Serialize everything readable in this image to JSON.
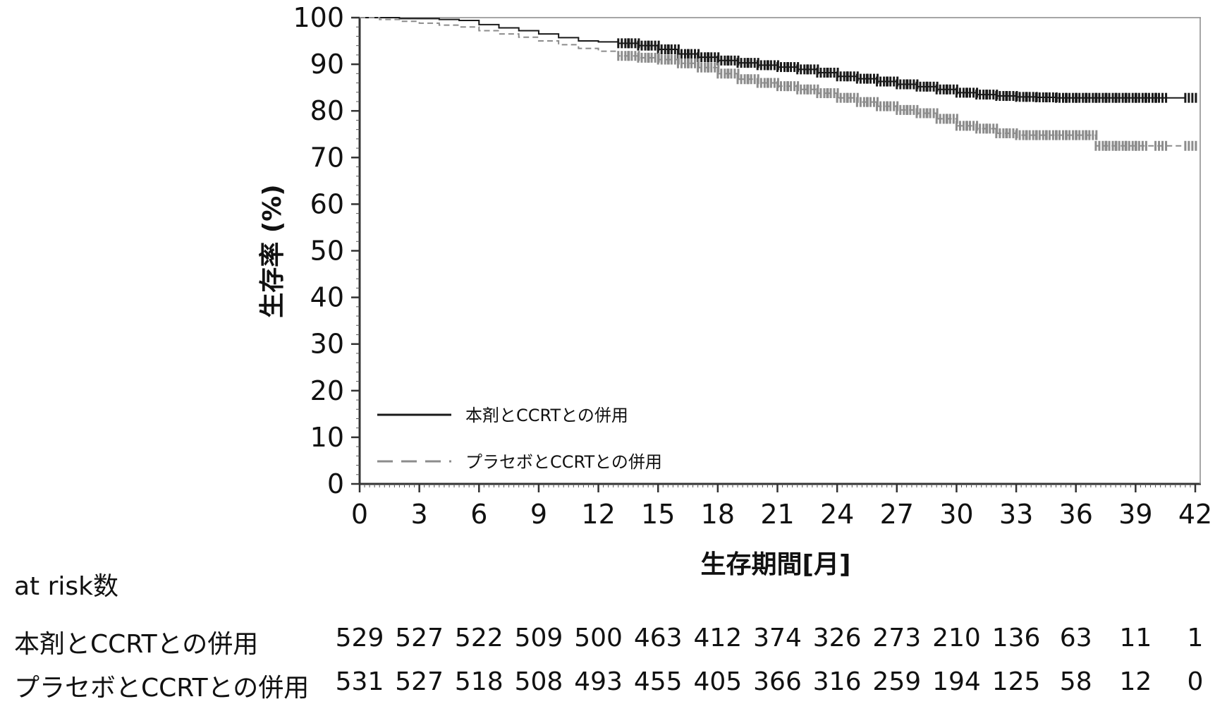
{
  "chart_data": {
    "type": "line",
    "title": "",
    "xlabel": "生存期間[月]",
    "ylabel": "生存率 (%)",
    "xlim": [
      0,
      42
    ],
    "ylim": [
      0,
      100
    ],
    "xticks": [
      0,
      3,
      6,
      9,
      12,
      15,
      18,
      21,
      24,
      27,
      30,
      33,
      36,
      39,
      42
    ],
    "yticks": [
      0,
      10,
      20,
      30,
      40,
      50,
      60,
      70,
      80,
      90,
      100
    ],
    "grid": false,
    "legend_position": "bottom-left",
    "series": [
      {
        "name": "本剤とCCRTとの併用",
        "color": "#1a1a1a",
        "style": "solid",
        "x": [
          0,
          2,
          4,
          5,
          6,
          7,
          8,
          9,
          10,
          11,
          12,
          13,
          14,
          15,
          16,
          17,
          18,
          19,
          20,
          21,
          22,
          23,
          24,
          25,
          26,
          27,
          28,
          29,
          30,
          31,
          32,
          33,
          34,
          35,
          36,
          37,
          38,
          39,
          40,
          41.5
        ],
        "y": [
          100,
          99.8,
          99.6,
          99.4,
          98.5,
          97.8,
          97.2,
          96.5,
          95.7,
          95.0,
          94.8,
          94.5,
          94.0,
          93.2,
          92.2,
          91.5,
          90.8,
          90.3,
          89.8,
          89.4,
          88.9,
          88.2,
          87.4,
          86.9,
          86.3,
          85.7,
          85.2,
          84.6,
          83.9,
          83.5,
          83.2,
          83.0,
          82.9,
          82.8,
          82.8,
          82.8,
          82.8,
          82.8,
          82.8,
          82.8
        ],
        "censor_x": [
          13,
          13.5,
          14,
          14.5,
          15,
          15.5,
          16,
          16.5,
          17,
          17.5,
          18,
          18.5,
          19,
          19.5,
          20,
          20.5,
          21,
          21.5,
          22,
          22.5,
          23,
          23.5,
          24,
          24.5,
          25,
          25.5,
          26,
          26.5,
          27,
          27.5,
          28,
          28.5,
          29,
          29.5,
          30,
          30.5,
          31,
          31.5,
          32,
          32.5,
          33,
          33.5,
          34,
          34.5,
          35,
          35.5,
          36,
          36.5,
          37,
          37.5,
          38,
          38.5,
          39,
          39.5,
          40,
          41.5
        ]
      },
      {
        "name": "プラセボとCCRTとの併用",
        "color": "#8c8c8c",
        "style": "dashed",
        "x": [
          0,
          1,
          2,
          3,
          4,
          5,
          6,
          7,
          8,
          9,
          10,
          11,
          12,
          13,
          14,
          15,
          16,
          17,
          18,
          19,
          20,
          21,
          22,
          23,
          24,
          25,
          26,
          27,
          28,
          29,
          30,
          31,
          32,
          33,
          34,
          35,
          36,
          37,
          38,
          39,
          40,
          41.5
        ],
        "y": [
          100,
          99.6,
          99.2,
          98.8,
          98.4,
          98.0,
          97.2,
          96.5,
          95.8,
          95.0,
          94.2,
          93.4,
          92.8,
          91.8,
          91.4,
          91.0,
          90.2,
          89.3,
          88.0,
          86.8,
          86.0,
          85.3,
          84.6,
          83.8,
          82.8,
          81.9,
          81.0,
          80.2,
          79.5,
          78.3,
          76.8,
          76.2,
          75.2,
          74.8,
          74.8,
          74.8,
          74.8,
          72.5,
          72.5,
          72.5,
          72.5,
          72.5
        ],
        "censor_x": [
          13,
          13.5,
          14,
          14.5,
          15,
          15.5,
          16,
          16.5,
          17,
          17.5,
          18,
          18.5,
          19,
          19.5,
          20,
          20.5,
          21,
          21.5,
          22,
          22.5,
          23,
          23.5,
          24,
          24.5,
          25,
          25.5,
          26,
          26.5,
          27,
          27.5,
          28,
          28.5,
          29,
          29.5,
          30,
          30.5,
          31,
          31.5,
          32,
          32.5,
          33,
          33.5,
          34,
          34.5,
          35,
          35.5,
          36,
          36.5,
          37,
          37.5,
          38,
          38.5,
          39,
          40,
          41.5
        ]
      }
    ]
  },
  "risk_table": {
    "title": "at risk数",
    "rows": [
      {
        "label": "本剤とCCRTとの併用",
        "values": [
          "529",
          "527",
          "522",
          "509",
          "500",
          "463",
          "412",
          "374",
          "326",
          "273",
          "210",
          "136",
          "63",
          "11",
          "1"
        ]
      },
      {
        "label": "プラセボとCCRTとの併用",
        "values": [
          "531",
          "527",
          "518",
          "508",
          "493",
          "455",
          "405",
          "366",
          "316",
          "259",
          "194",
          "125",
          "58",
          "12",
          "0"
        ]
      }
    ]
  }
}
